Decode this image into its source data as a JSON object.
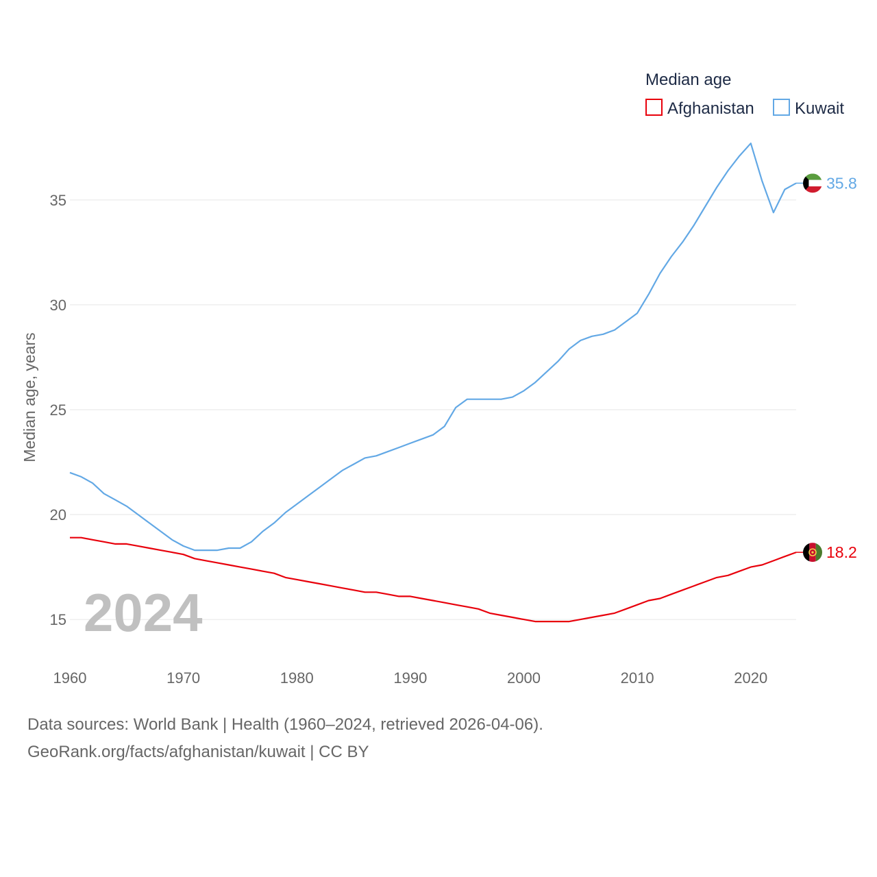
{
  "chart_data": {
    "type": "line",
    "title": "Median age",
    "ylabel": "Median age, years",
    "xlabel": "",
    "year_label": "2024",
    "xlim": [
      1960,
      2024
    ],
    "ylim": [
      13.5,
      38
    ],
    "x_ticks": [
      1960,
      1970,
      1980,
      1990,
      2000,
      2010,
      2020
    ],
    "y_ticks": [
      15,
      20,
      25,
      30,
      35
    ],
    "grid": true,
    "legend_position": "top-right",
    "x": [
      1960,
      1961,
      1962,
      1963,
      1964,
      1965,
      1966,
      1967,
      1968,
      1969,
      1970,
      1971,
      1972,
      1973,
      1974,
      1975,
      1976,
      1977,
      1978,
      1979,
      1980,
      1981,
      1982,
      1983,
      1984,
      1985,
      1986,
      1987,
      1988,
      1989,
      1990,
      1991,
      1992,
      1993,
      1994,
      1995,
      1996,
      1997,
      1998,
      1999,
      2000,
      2001,
      2002,
      2003,
      2004,
      2005,
      2006,
      2007,
      2008,
      2009,
      2010,
      2011,
      2012,
      2013,
      2014,
      2015,
      2016,
      2017,
      2018,
      2019,
      2020,
      2021,
      2022,
      2023,
      2024
    ],
    "series": [
      {
        "name": "Afghanistan",
        "color": "#e8000b",
        "end_label": "18.2",
        "flag": "afghanistan-flag",
        "values": [
          18.9,
          18.9,
          18.8,
          18.7,
          18.6,
          18.6,
          18.5,
          18.4,
          18.3,
          18.2,
          18.1,
          17.9,
          17.8,
          17.7,
          17.6,
          17.5,
          17.4,
          17.3,
          17.2,
          17.0,
          16.9,
          16.8,
          16.7,
          16.6,
          16.5,
          16.4,
          16.3,
          16.3,
          16.2,
          16.1,
          16.1,
          16.0,
          15.9,
          15.8,
          15.7,
          15.6,
          15.5,
          15.3,
          15.2,
          15.1,
          15.0,
          14.9,
          14.9,
          14.9,
          14.9,
          15.0,
          15.1,
          15.2,
          15.3,
          15.5,
          15.7,
          15.9,
          16.0,
          16.2,
          16.4,
          16.6,
          16.8,
          17.0,
          17.1,
          17.3,
          17.5,
          17.6,
          17.8,
          18.0,
          18.2
        ]
      },
      {
        "name": "Kuwait",
        "color": "#62a8e5",
        "end_label": "35.8",
        "flag": "kuwait-flag",
        "values": [
          22.0,
          21.8,
          21.5,
          21.0,
          20.7,
          20.4,
          20.0,
          19.6,
          19.2,
          18.8,
          18.5,
          18.3,
          18.3,
          18.3,
          18.4,
          18.4,
          18.7,
          19.2,
          19.6,
          20.1,
          20.5,
          20.9,
          21.3,
          21.7,
          22.1,
          22.4,
          22.7,
          22.8,
          23.0,
          23.2,
          23.4,
          23.6,
          23.8,
          24.2,
          25.1,
          25.5,
          25.5,
          25.5,
          25.5,
          25.6,
          25.9,
          26.3,
          26.8,
          27.3,
          27.9,
          28.3,
          28.5,
          28.6,
          28.8,
          29.2,
          29.6,
          30.5,
          31.5,
          32.3,
          33.0,
          33.8,
          34.7,
          35.6,
          36.4,
          37.1,
          37.7,
          35.9,
          34.4,
          35.5,
          35.8
        ]
      }
    ]
  },
  "footer": {
    "line1": "Data sources: World Bank | Health (1960–2024, retrieved 2026-04-06).",
    "line2": "GeoRank.org/facts/afghanistan/kuwait | CC BY"
  }
}
